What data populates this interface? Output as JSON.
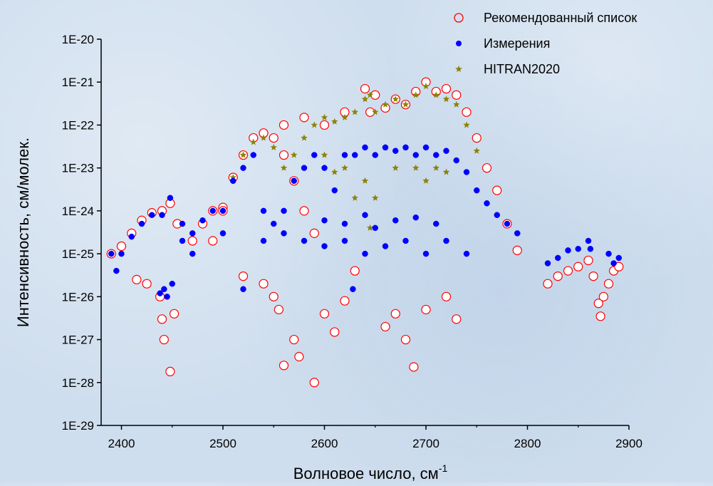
{
  "chart_data": {
    "type": "scatter",
    "xlabel": "Волновое число, см",
    "xlabel_superscript": "-1",
    "ylabel": "Интенсивность, см/молек.",
    "xlim": [
      2380,
      2900
    ],
    "ylim": [
      1e-29,
      1e-20
    ],
    "yscale": "log",
    "xticks": [
      2400,
      2500,
      2600,
      2700,
      2800,
      2900
    ],
    "xtick_labels": [
      "2400",
      "2500",
      "2600",
      "2700",
      "2800",
      "2900"
    ],
    "yticks": [
      1e-20,
      1e-21,
      1e-22,
      1e-23,
      1e-24,
      1e-25,
      1e-26,
      1e-27,
      1e-28,
      1e-29
    ],
    "ytick_labels": [
      "1E-20",
      "1E-21",
      "1E-22",
      "1E-23",
      "1E-24",
      "1E-25",
      "1E-26",
      "1E-27",
      "1E-28",
      "1E-29"
    ],
    "grid": false,
    "legend_position": "top-right",
    "series": [
      {
        "name": "Рекомендованный список",
        "marker": "open-circle",
        "color": "#ff0000",
        "points": [
          [
            2390,
            1e-25
          ],
          [
            2400,
            1.5e-25
          ],
          [
            2410,
            3e-25
          ],
          [
            2420,
            6e-25
          ],
          [
            2430,
            9e-25
          ],
          [
            2440,
            1e-24
          ],
          [
            2448,
            1.5e-24
          ],
          [
            2415,
            2.5e-26
          ],
          [
            2425,
            2e-26
          ],
          [
            2438,
            1e-26
          ],
          [
            2440,
            3e-27
          ],
          [
            2442,
            1e-27
          ],
          [
            2448,
            1.8e-28
          ],
          [
            2452,
            4e-27
          ],
          [
            2455,
            5e-25
          ],
          [
            2470,
            2e-25
          ],
          [
            2480,
            5e-25
          ],
          [
            2490,
            1e-24
          ],
          [
            2500,
            1.2e-24
          ],
          [
            2510,
            6e-24
          ],
          [
            2520,
            2e-23
          ],
          [
            2530,
            5e-23
          ],
          [
            2540,
            6.5e-23
          ],
          [
            2550,
            5e-23
          ],
          [
            2560,
            2e-23
          ],
          [
            2570,
            5e-24
          ],
          [
            2580,
            1e-24
          ],
          [
            2590,
            3e-25
          ],
          [
            2520,
            3e-26
          ],
          [
            2540,
            2e-26
          ],
          [
            2550,
            1e-26
          ],
          [
            2555,
            5e-27
          ],
          [
            2560,
            2.5e-28
          ],
          [
            2570,
            1e-27
          ],
          [
            2575,
            4e-28
          ],
          [
            2590,
            1e-28
          ],
          [
            2600,
            4e-27
          ],
          [
            2610,
            1.5e-27
          ],
          [
            2620,
            8e-27
          ],
          [
            2630,
            4e-26
          ],
          [
            2640,
            7e-22
          ],
          [
            2645,
            2e-22
          ],
          [
            2650,
            5e-22
          ],
          [
            2660,
            2.5e-22
          ],
          [
            2670,
            4e-22
          ],
          [
            2680,
            3e-22
          ],
          [
            2690,
            6e-22
          ],
          [
            2700,
            1e-21
          ],
          [
            2710,
            6e-22
          ],
          [
            2720,
            7e-22
          ],
          [
            2730,
            5e-22
          ],
          [
            2740,
            2e-22
          ],
          [
            2750,
            5e-23
          ],
          [
            2760,
            1e-23
          ],
          [
            2770,
            3e-24
          ],
          [
            2780,
            5e-25
          ],
          [
            2790,
            1.2e-25
          ],
          [
            2660,
            2e-27
          ],
          [
            2670,
            4e-27
          ],
          [
            2680,
            1e-27
          ],
          [
            2688,
            2.3e-28
          ],
          [
            2700,
            5e-27
          ],
          [
            2720,
            1e-26
          ],
          [
            2730,
            3e-27
          ],
          [
            2600,
            1e-22
          ],
          [
            2580,
            1.5e-22
          ],
          [
            2620,
            2e-22
          ],
          [
            2560,
            1e-22
          ],
          [
            2500,
            1e-24
          ],
          [
            2490,
            2e-25
          ],
          [
            2820,
            2e-26
          ],
          [
            2830,
            3e-26
          ],
          [
            2840,
            4e-26
          ],
          [
            2850,
            5e-26
          ],
          [
            2860,
            7e-26
          ],
          [
            2865,
            3e-26
          ],
          [
            2870,
            7e-27
          ],
          [
            2872,
            3.5e-27
          ],
          [
            2875,
            1e-26
          ],
          [
            2880,
            2e-26
          ],
          [
            2885,
            4e-26
          ],
          [
            2890,
            5e-26
          ]
        ]
      },
      {
        "name": "Измерения",
        "marker": "filled-circle",
        "color": "#0000ff",
        "points": [
          [
            2390,
            1e-25
          ],
          [
            2395,
            4e-26
          ],
          [
            2400,
            1e-25
          ],
          [
            2410,
            2.5e-25
          ],
          [
            2420,
            5e-25
          ],
          [
            2430,
            8e-25
          ],
          [
            2440,
            8e-25
          ],
          [
            2448,
            2e-24
          ],
          [
            2438,
            1.2e-26
          ],
          [
            2442,
            1.5e-26
          ],
          [
            2445,
            1e-26
          ],
          [
            2450,
            2e-26
          ],
          [
            2460,
            5e-25
          ],
          [
            2470,
            3e-25
          ],
          [
            2480,
            6e-25
          ],
          [
            2490,
            1e-24
          ],
          [
            2500,
            1e-24
          ],
          [
            2510,
            5e-24
          ],
          [
            2520,
            1e-23
          ],
          [
            2530,
            2e-23
          ],
          [
            2540,
            1e-24
          ],
          [
            2550,
            5e-25
          ],
          [
            2560,
            1e-24
          ],
          [
            2570,
            5e-24
          ],
          [
            2580,
            1e-23
          ],
          [
            2590,
            2e-23
          ],
          [
            2600,
            1e-23
          ],
          [
            2610,
            3e-24
          ],
          [
            2620,
            2e-23
          ],
          [
            2630,
            2e-23
          ],
          [
            2640,
            3e-23
          ],
          [
            2650,
            2e-23
          ],
          [
            2660,
            3e-23
          ],
          [
            2670,
            2.5e-23
          ],
          [
            2680,
            3e-23
          ],
          [
            2690,
            2e-23
          ],
          [
            2700,
            3e-23
          ],
          [
            2710,
            2e-23
          ],
          [
            2720,
            2.5e-23
          ],
          [
            2730,
            1.5e-23
          ],
          [
            2740,
            8e-24
          ],
          [
            2750,
            3e-24
          ],
          [
            2760,
            1.5e-24
          ],
          [
            2770,
            8e-25
          ],
          [
            2780,
            5e-25
          ],
          [
            2790,
            3e-25
          ],
          [
            2520,
            1.5e-26
          ],
          [
            2600,
            1.5e-25
          ],
          [
            2620,
            2e-25
          ],
          [
            2640,
            1e-25
          ],
          [
            2660,
            1.5e-25
          ],
          [
            2680,
            2e-25
          ],
          [
            2700,
            1e-25
          ],
          [
            2720,
            2e-25
          ],
          [
            2740,
            1e-25
          ],
          [
            2628,
            1.5e-26
          ],
          [
            2580,
            2e-25
          ],
          [
            2560,
            3e-25
          ],
          [
            2540,
            2e-25
          ],
          [
            2500,
            3e-25
          ],
          [
            2470,
            1e-25
          ],
          [
            2460,
            2e-25
          ],
          [
            2640,
            8e-25
          ],
          [
            2650,
            4e-25
          ],
          [
            2670,
            6e-25
          ],
          [
            2690,
            7e-25
          ],
          [
            2710,
            5e-25
          ],
          [
            2620,
            5e-25
          ],
          [
            2600,
            6e-25
          ],
          [
            2820,
            6e-26
          ],
          [
            2830,
            8e-26
          ],
          [
            2840,
            1.2e-25
          ],
          [
            2850,
            1.3e-25
          ],
          [
            2860,
            2e-25
          ],
          [
            2862,
            1.3e-25
          ],
          [
            2880,
            1e-25
          ],
          [
            2885,
            6e-26
          ],
          [
            2890,
            8e-26
          ]
        ]
      },
      {
        "name": "HITRAN2020",
        "marker": "star",
        "color": "#8c8200",
        "points": [
          [
            2510,
            6e-24
          ],
          [
            2520,
            2e-23
          ],
          [
            2530,
            4e-23
          ],
          [
            2540,
            5e-23
          ],
          [
            2550,
            3e-23
          ],
          [
            2560,
            1e-23
          ],
          [
            2570,
            2e-23
          ],
          [
            2580,
            5e-23
          ],
          [
            2590,
            1e-22
          ],
          [
            2600,
            1.5e-22
          ],
          [
            2610,
            1.2e-22
          ],
          [
            2620,
            1.5e-22
          ],
          [
            2630,
            2e-22
          ],
          [
            2640,
            4e-22
          ],
          [
            2645,
            5e-22
          ],
          [
            2650,
            2e-22
          ],
          [
            2660,
            3e-22
          ],
          [
            2670,
            4e-22
          ],
          [
            2680,
            3e-22
          ],
          [
            2690,
            5e-22
          ],
          [
            2700,
            8e-22
          ],
          [
            2710,
            5e-22
          ],
          [
            2720,
            4e-22
          ],
          [
            2730,
            3e-22
          ],
          [
            2740,
            1e-22
          ],
          [
            2750,
            2.5e-23
          ],
          [
            2600,
            2e-23
          ],
          [
            2610,
            8e-24
          ],
          [
            2620,
            1e-23
          ],
          [
            2630,
            2e-24
          ],
          [
            2640,
            5e-24
          ],
          [
            2645,
            4e-25
          ],
          [
            2650,
            2e-24
          ],
          [
            2660,
            3e-23
          ],
          [
            2670,
            1e-23
          ],
          [
            2680,
            3e-23
          ],
          [
            2690,
            1e-23
          ],
          [
            2700,
            5e-24
          ],
          [
            2710,
            1e-23
          ],
          [
            2720,
            8e-24
          ]
        ]
      }
    ]
  }
}
